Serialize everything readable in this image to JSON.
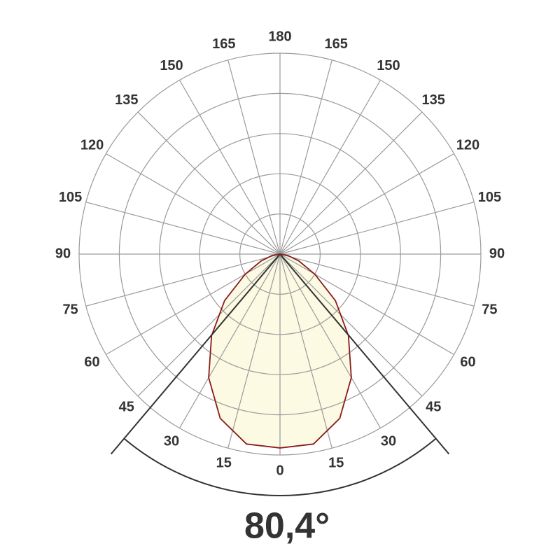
{
  "chart_data": {
    "type": "polar",
    "angle_ticks": [
      0,
      15,
      30,
      45,
      60,
      75,
      90,
      105,
      120,
      135,
      150,
      165,
      180
    ],
    "rlim": [
      0,
      1
    ],
    "rticks": [
      0.2,
      0.4,
      0.6,
      0.8,
      1.0
    ],
    "grid": true,
    "x": [
      0,
      10,
      20,
      30,
      40,
      50,
      60,
      70,
      80,
      90
    ],
    "values": [
      0.965,
      0.96,
      0.87,
      0.71,
      0.53,
      0.36,
      0.2,
      0.1,
      0.04,
      0
    ],
    "color": "#8b1a1a",
    "fill": "#fcfae3",
    "beam_angle": {
      "value": 80.4,
      "label": "80,4°"
    }
  }
}
